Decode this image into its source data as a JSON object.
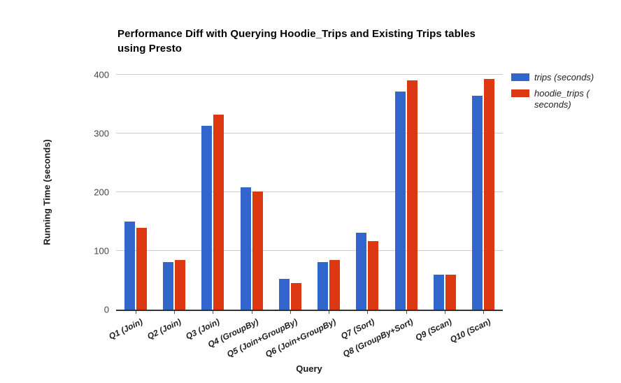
{
  "title_lines": [
    "Performance Diff with Querying Hoodie_Trips and Existing Trips tables",
    "using Presto"
  ],
  "chart_data": {
    "type": "bar",
    "title": "Performance Diff with Querying Hoodie_Trips and Existing Trips tables using Presto",
    "xlabel": "Query",
    "ylabel": "Running Time (seconds)",
    "ylim": [
      0,
      400
    ],
    "yticks": [
      0,
      100,
      200,
      300,
      400
    ],
    "grid": true,
    "legend_position": "right",
    "categories": [
      "Q1 (Join)",
      "Q2 (Join)",
      "Q3 (Join)",
      "Q4 (GroupBy)",
      "Q5 (Join+GroupBy)",
      "Q6 (Join+GroupBy)",
      "Q7 (Sort)",
      "Q8 (GroupBy+Sort)",
      "Q9 (Scan)",
      "Q10 (Scan)"
    ],
    "series": [
      {
        "name": "trips (seconds)",
        "color": "#3366CC",
        "values": [
          150,
          81,
          313,
          208,
          52,
          81,
          131,
          372,
          60,
          364
        ]
      },
      {
        "name": "hoodie_trips ( seconds)",
        "color": "#DC3912",
        "values": [
          139,
          84,
          332,
          201,
          45,
          85,
          117,
          391,
          59,
          393
        ]
      }
    ]
  },
  "colors": {
    "series_blue": "#3366CC",
    "series_red": "#DC3912",
    "gridline": "#cccccc",
    "axis_line": "#333333",
    "tick_text": "#444444",
    "background": "#ffffff"
  }
}
